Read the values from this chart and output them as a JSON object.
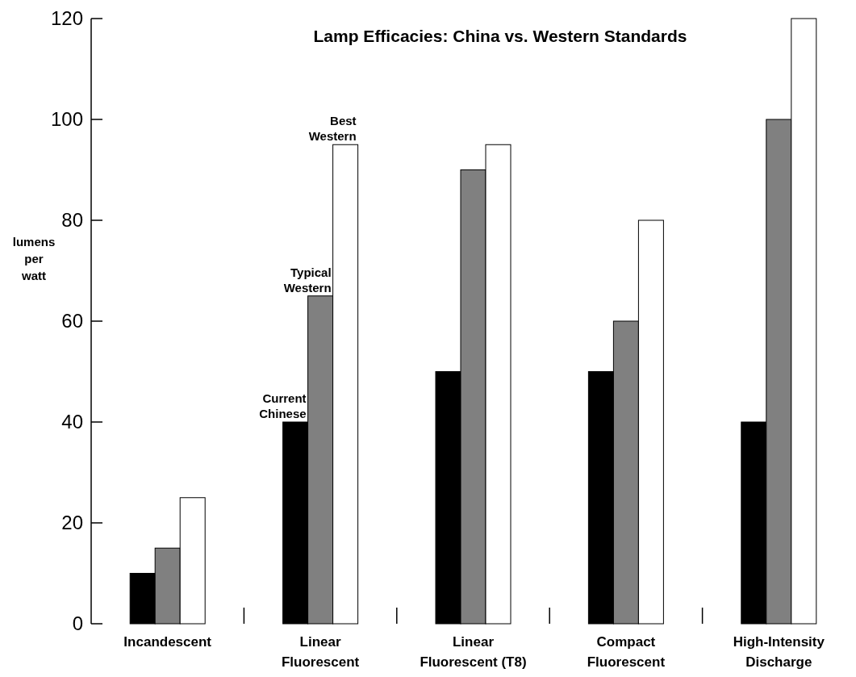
{
  "chart_data": {
    "type": "bar",
    "title": "Lamp Efficacies: China vs. Western Standards",
    "ylabel": "lumens per watt",
    "categories": [
      "Incandescent",
      "Linear Fluorescent",
      "Linear Fluorescent (T8)",
      "Compact Fluorescent",
      "High-Intensity Discharge"
    ],
    "series": [
      {
        "name": "Current Chinese",
        "color": "#000000",
        "values": [
          10,
          40,
          50,
          50,
          40
        ]
      },
      {
        "name": "Typical Western",
        "color": "#808080",
        "values": [
          15,
          65,
          90,
          60,
          100
        ]
      },
      {
        "name": "Best Western",
        "color": "#ffffff",
        "values": [
          25,
          95,
          95,
          80,
          120
        ]
      }
    ],
    "ylim": [
      0,
      120
    ],
    "yticks": [
      0,
      20,
      40,
      60,
      80,
      100,
      120
    ],
    "grid": false,
    "legend": false
  }
}
